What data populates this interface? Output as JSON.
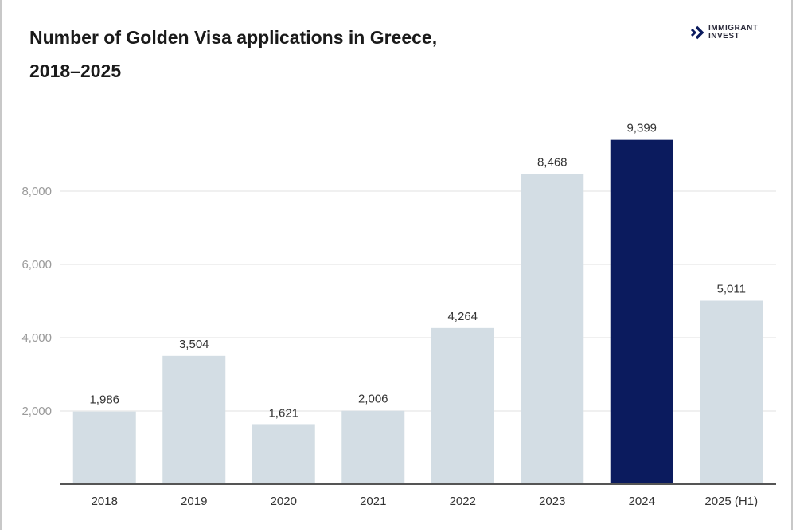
{
  "logo": {
    "line1": "IMMIGRANT",
    "line2": "INVEST"
  },
  "chart_data": {
    "type": "bar",
    "title": "Number of Golden Visa applications in Greece, 2018–2025",
    "title_lines": [
      "Number of Golden Visa applications in Greece,",
      "2018–2025"
    ],
    "categories": [
      "2018",
      "2019",
      "2020",
      "2021",
      "2022",
      "2023",
      "2024",
      "2025 (H1)"
    ],
    "values": [
      1986,
      3504,
      1621,
      2006,
      4264,
      8468,
      9399,
      5011
    ],
    "data_labels": [
      "1,986",
      "3,504",
      "1,621",
      "2,006",
      "4,264",
      "8,468",
      "9,399",
      "5,011"
    ],
    "highlight_index": 6,
    "xlabel": "",
    "ylabel": "",
    "ylim": [
      0,
      9800
    ],
    "yticks": [
      2000,
      4000,
      6000,
      8000
    ],
    "ytick_labels": [
      "2,000",
      "4,000",
      "6,000",
      "8,000"
    ],
    "grid": true,
    "colors": {
      "bar": "#d3dde4",
      "highlight": "#0b1b5e",
      "grid": "#ececec",
      "axis": "#555555"
    }
  }
}
